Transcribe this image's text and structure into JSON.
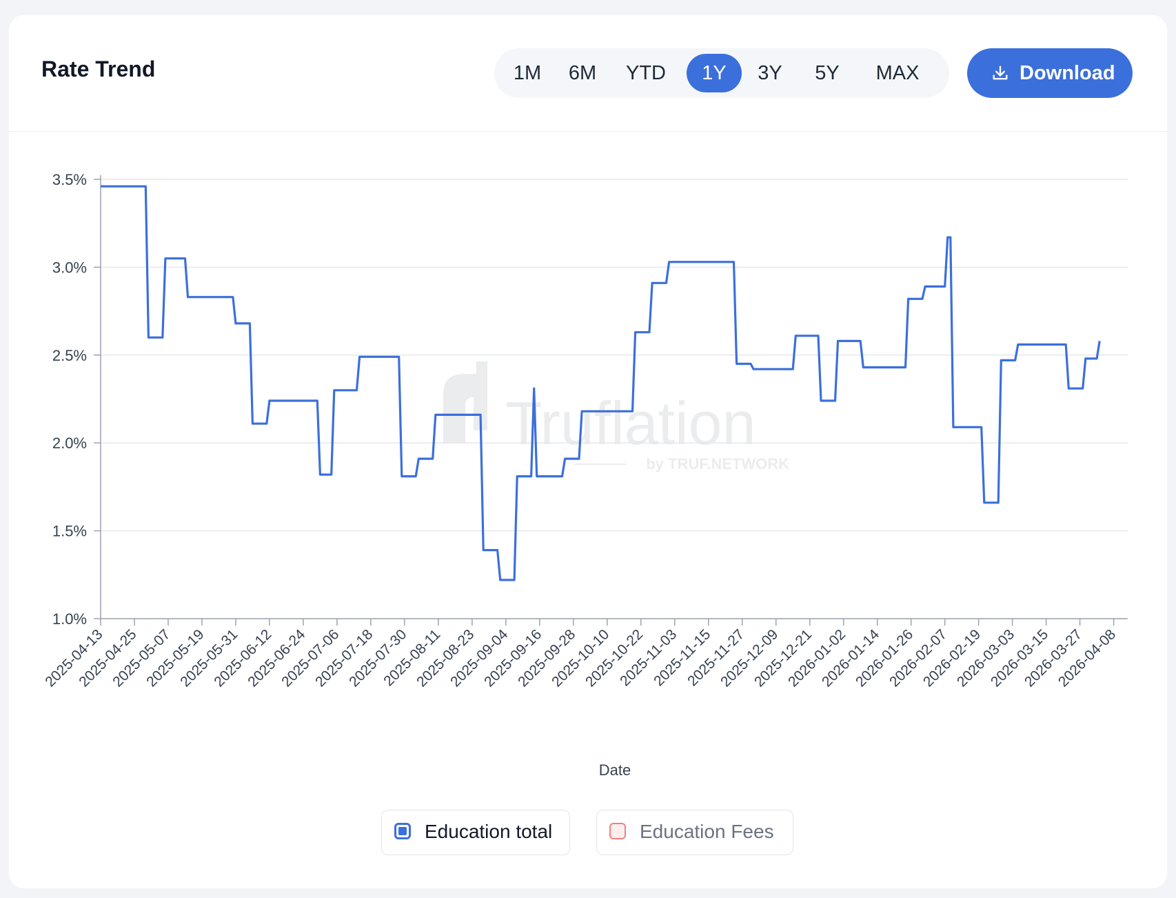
{
  "header": {
    "title": "Rate Trend",
    "download_label": "Download",
    "download_icon": "download-icon"
  },
  "ranges": [
    {
      "label": "1M",
      "active": false
    },
    {
      "label": "6M",
      "active": false
    },
    {
      "label": "YTD",
      "active": false
    },
    {
      "label": "1Y",
      "active": true
    },
    {
      "label": "3Y",
      "active": false
    },
    {
      "label": "5Y",
      "active": false
    },
    {
      "label": "MAX",
      "active": false
    }
  ],
  "watermark": {
    "brand": "Truflation",
    "sub": "by TRUF.NETWORK"
  },
  "colors": {
    "accent": "#3b6fdc",
    "series_primary": "#3b6fdc",
    "series_secondary": "#f08080"
  },
  "chart_data": {
    "type": "line",
    "step": true,
    "title": "",
    "xlabel": "Date",
    "ylabel": "",
    "ylim": [
      1.0,
      3.5
    ],
    "yticks": [
      "1.0%",
      "1.5%",
      "2.0%",
      "2.5%",
      "3.0%",
      "3.5%"
    ],
    "grid": true,
    "xlim": [
      "2025-04-13",
      "2026-04-13"
    ],
    "xticks": [
      "2025-04-13",
      "2025-04-25",
      "2025-05-07",
      "2025-05-19",
      "2025-05-31",
      "2025-06-12",
      "2025-06-24",
      "2025-07-06",
      "2025-07-18",
      "2025-07-30",
      "2025-08-11",
      "2025-08-23",
      "2025-09-04",
      "2025-09-16",
      "2025-09-28",
      "2025-10-10",
      "2025-10-22",
      "2025-11-03",
      "2025-11-15",
      "2025-11-27",
      "2025-12-09",
      "2025-12-21",
      "2026-01-02",
      "2026-01-14",
      "2026-01-26",
      "2026-02-07",
      "2026-02-19",
      "2026-03-03",
      "2026-03-15",
      "2026-03-27",
      "2026-04-08"
    ],
    "legend_position": "bottom",
    "series": [
      {
        "name": "Education total",
        "visible": true,
        "color": "#3b6fdc",
        "points": [
          [
            "2025-04-13",
            3.46
          ],
          [
            "2025-04-29",
            3.46
          ],
          [
            "2025-04-30",
            2.6
          ],
          [
            "2025-05-05",
            2.6
          ],
          [
            "2025-05-06",
            3.05
          ],
          [
            "2025-05-13",
            3.05
          ],
          [
            "2025-05-14",
            2.83
          ],
          [
            "2025-05-30",
            2.83
          ],
          [
            "2025-05-31",
            2.68
          ],
          [
            "2025-06-05",
            2.68
          ],
          [
            "2025-06-06",
            2.11
          ],
          [
            "2025-06-11",
            2.11
          ],
          [
            "2025-06-12",
            2.24
          ],
          [
            "2025-06-29",
            2.24
          ],
          [
            "2025-06-30",
            1.82
          ],
          [
            "2025-07-04",
            1.82
          ],
          [
            "2025-07-05",
            2.3
          ],
          [
            "2025-07-13",
            2.3
          ],
          [
            "2025-07-14",
            2.49
          ],
          [
            "2025-07-28",
            2.49
          ],
          [
            "2025-07-29",
            1.81
          ],
          [
            "2025-08-03",
            1.81
          ],
          [
            "2025-08-04",
            1.91
          ],
          [
            "2025-08-09",
            1.91
          ],
          [
            "2025-08-10",
            2.16
          ],
          [
            "2025-08-26",
            2.16
          ],
          [
            "2025-08-27",
            1.39
          ],
          [
            "2025-09-01",
            1.39
          ],
          [
            "2025-09-02",
            1.22
          ],
          [
            "2025-09-07",
            1.22
          ],
          [
            "2025-09-08",
            1.81
          ],
          [
            "2025-09-13",
            1.81
          ],
          [
            "2025-09-14",
            2.31
          ],
          [
            "2025-09-15",
            1.81
          ],
          [
            "2025-09-24",
            1.81
          ],
          [
            "2025-09-25",
            1.91
          ],
          [
            "2025-09-30",
            1.91
          ],
          [
            "2025-10-01",
            2.18
          ],
          [
            "2025-10-19",
            2.18
          ],
          [
            "2025-10-20",
            2.63
          ],
          [
            "2025-10-25",
            2.63
          ],
          [
            "2025-10-26",
            2.91
          ],
          [
            "2025-10-31",
            2.91
          ],
          [
            "2025-11-01",
            3.03
          ],
          [
            "2025-11-24",
            3.03
          ],
          [
            "2025-11-25",
            2.45
          ],
          [
            "2025-11-30",
            2.45
          ],
          [
            "2025-12-01",
            2.42
          ],
          [
            "2025-12-15",
            2.42
          ],
          [
            "2025-12-16",
            2.61
          ],
          [
            "2025-12-24",
            2.61
          ],
          [
            "2025-12-25",
            2.24
          ],
          [
            "2025-12-30",
            2.24
          ],
          [
            "2025-12-31",
            2.58
          ],
          [
            "2026-01-08",
            2.58
          ],
          [
            "2026-01-09",
            2.43
          ],
          [
            "2026-01-24",
            2.43
          ],
          [
            "2026-01-25",
            2.82
          ],
          [
            "2026-01-30",
            2.82
          ],
          [
            "2026-01-31",
            2.89
          ],
          [
            "2026-02-07",
            2.89
          ],
          [
            "2026-02-08",
            3.17
          ],
          [
            "2026-02-09",
            3.17
          ],
          [
            "2026-02-10",
            2.09
          ],
          [
            "2026-02-20",
            2.09
          ],
          [
            "2026-02-21",
            1.66
          ],
          [
            "2026-02-26",
            1.66
          ],
          [
            "2026-02-27",
            2.47
          ],
          [
            "2026-03-04",
            2.47
          ],
          [
            "2026-03-05",
            2.56
          ],
          [
            "2026-03-22",
            2.56
          ],
          [
            "2026-03-23",
            2.31
          ],
          [
            "2026-03-28",
            2.31
          ],
          [
            "2026-03-29",
            2.48
          ],
          [
            "2026-04-02",
            2.48
          ],
          [
            "2026-04-03",
            2.58
          ]
        ]
      },
      {
        "name": "Education Fees",
        "visible": false,
        "color": "#f08080",
        "points": []
      }
    ]
  }
}
